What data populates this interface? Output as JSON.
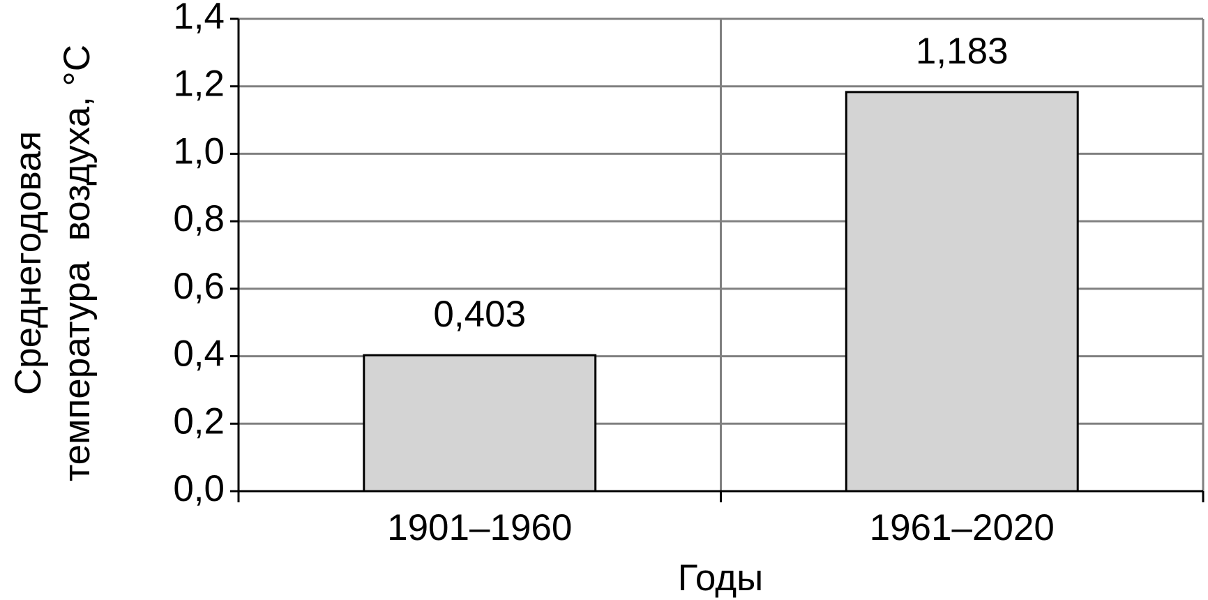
{
  "chart_data": {
    "type": "bar",
    "y_label": [
      "Среднегодовая",
      "температура  воздуха, °C"
    ],
    "x_label": "Годы",
    "categories": [
      "1901–1960",
      "1961–2020"
    ],
    "values": [
      0.403,
      1.183
    ],
    "value_labels": [
      "0,403",
      "1,183"
    ],
    "color": "#d4d4d4",
    "ylim": [
      0,
      1.4
    ],
    "yticks": [
      {
        "value": 0,
        "label": "0,0"
      },
      {
        "value": 0.2,
        "label": "0,2"
      },
      {
        "value": 0.4,
        "label": "0,4"
      },
      {
        "value": 0.6,
        "label": "0,6"
      },
      {
        "value": 0.8,
        "label": "0,8"
      },
      {
        "value": 1.0,
        "label": "1,0"
      },
      {
        "value": 1.2,
        "label": "1,2"
      },
      {
        "value": 1.4,
        "label": "1,4"
      }
    ],
    "grid": true
  }
}
